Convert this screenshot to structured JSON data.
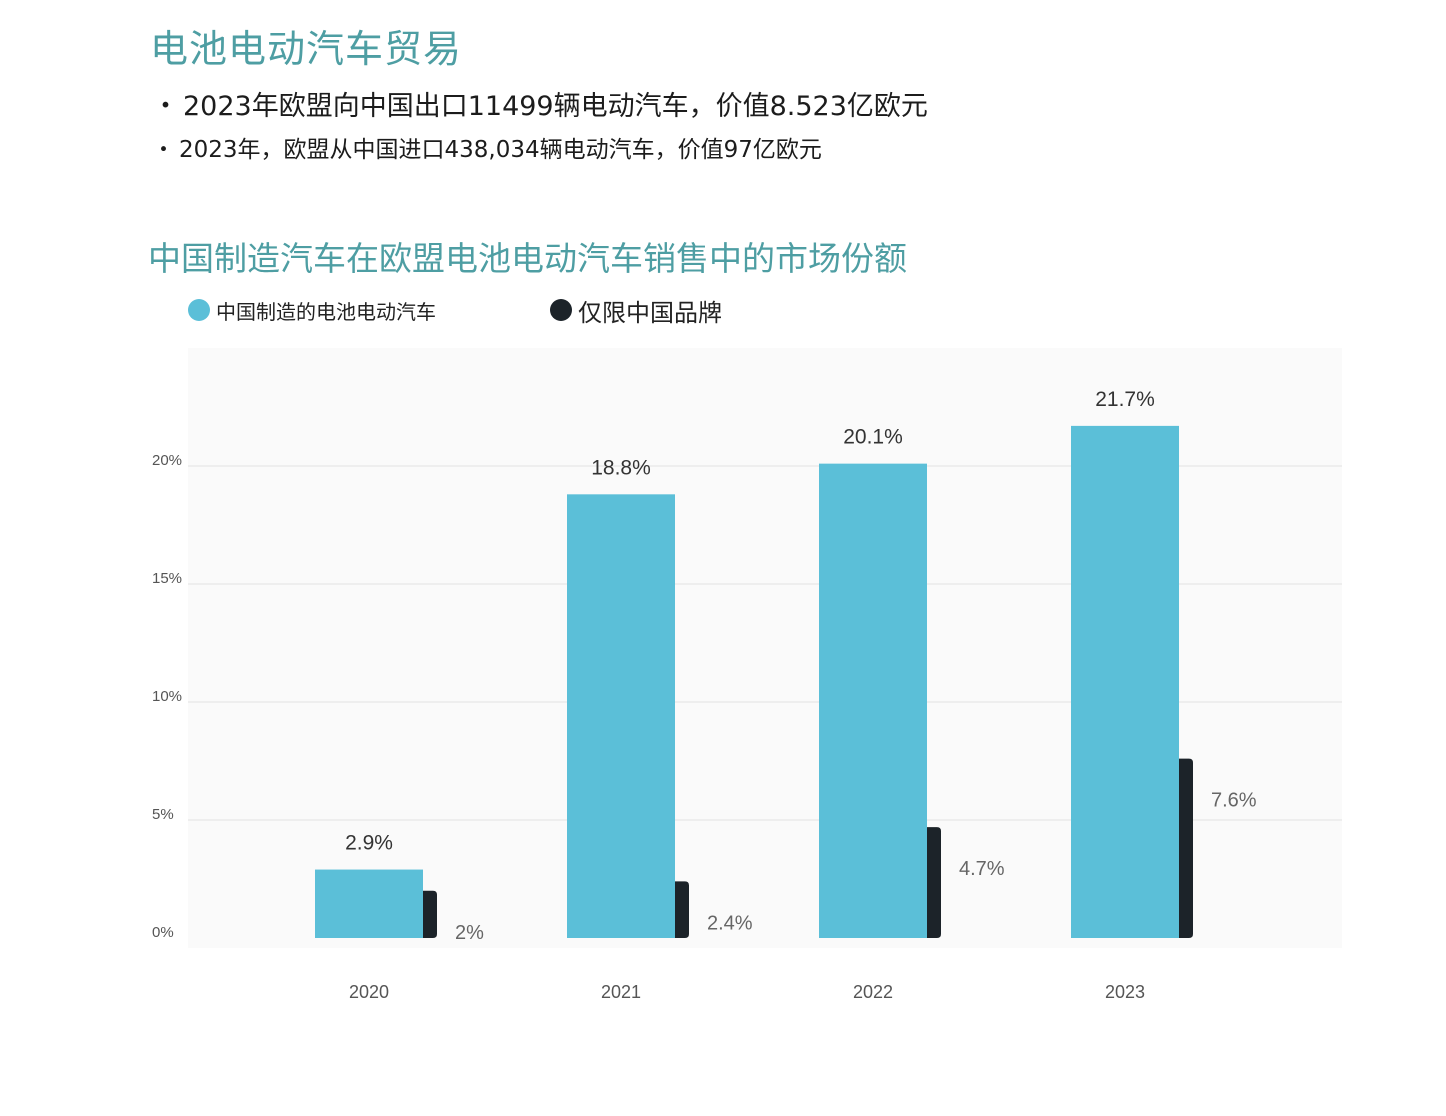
{
  "header": {
    "title": "电池电动汽车贸易",
    "bullets": [
      "2023年欧盟向中国出口11499辆电动汽车，价值8.523亿欧元",
      "2023年，欧盟从中国进口438,034辆电动汽车，价值97亿欧元"
    ],
    "bullet_marker": "・"
  },
  "colors": {
    "accent_title": "#4e9ea3",
    "series_made_in_china": "#5bbfd8",
    "series_chinese_brands": "#1c2329",
    "grid": "#e3e3e3",
    "axis_text": "#555555"
  },
  "chart_data": {
    "type": "bar",
    "title": "中国制造汽车在欧盟电池电动汽车销售中的市场份额",
    "categories": [
      "2020",
      "2021",
      "2022",
      "2023"
    ],
    "series": [
      {
        "name": "中国制造的电池电动汽车",
        "values": [
          2.9,
          18.8,
          20.1,
          21.7
        ],
        "labels": [
          "2.9%",
          "18.8%",
          "20.1%",
          "21.7%"
        ]
      },
      {
        "name": "仅限中国品牌",
        "values": [
          2,
          2.4,
          4.7,
          7.6
        ],
        "labels": [
          "2%",
          "2.4%",
          "4.7%",
          "7.6%"
        ]
      }
    ],
    "yticks": [
      0,
      5,
      10,
      15,
      20
    ],
    "ytick_labels": [
      "0%",
      "5%",
      "10%",
      "15%",
      "20%"
    ],
    "ylim": [
      0,
      25
    ],
    "grid": true,
    "legend_position": "top-left",
    "xlabel": "",
    "ylabel": ""
  }
}
